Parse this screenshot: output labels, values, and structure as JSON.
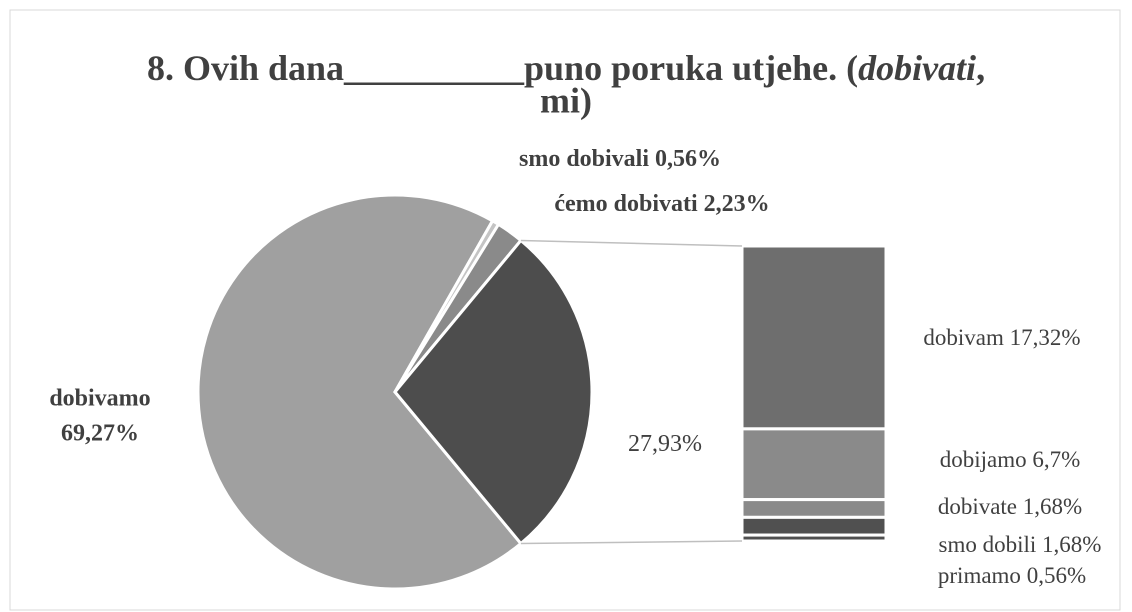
{
  "chart_data": {
    "type": "bar_of_pie",
    "title_parts": [
      "8. Ovih dana__________puno poruka  utjehe. (",
      "dobivati",
      ",",
      "mi)"
    ],
    "categories": [
      "dobivamo",
      "smo dobivali",
      "ćemo dobivati",
      null
    ],
    "values": [
      69.27,
      0.56,
      2.23,
      27.93
    ],
    "value_labels": [
      "69,27%",
      "0,56%",
      "2,23%",
      "27,93%"
    ],
    "colors": [
      "#a0a0a0",
      "#c4c4c4",
      "#8a8a8a",
      "#4d4d4d"
    ],
    "bar": {
      "categories": [
        "dobivam",
        "dobijamo",
        "dobivate",
        "smo dobili",
        "primamo"
      ],
      "values": [
        17.32,
        6.7,
        1.68,
        1.68,
        0.56
      ],
      "value_labels": [
        "17,32%",
        "6,7%",
        "1,68%",
        "1,68%",
        "0,56%"
      ],
      "colors": [
        "#6e6e6e",
        "#8a8a8a",
        "#8a8a8a",
        "#505050",
        "#505050"
      ]
    }
  }
}
